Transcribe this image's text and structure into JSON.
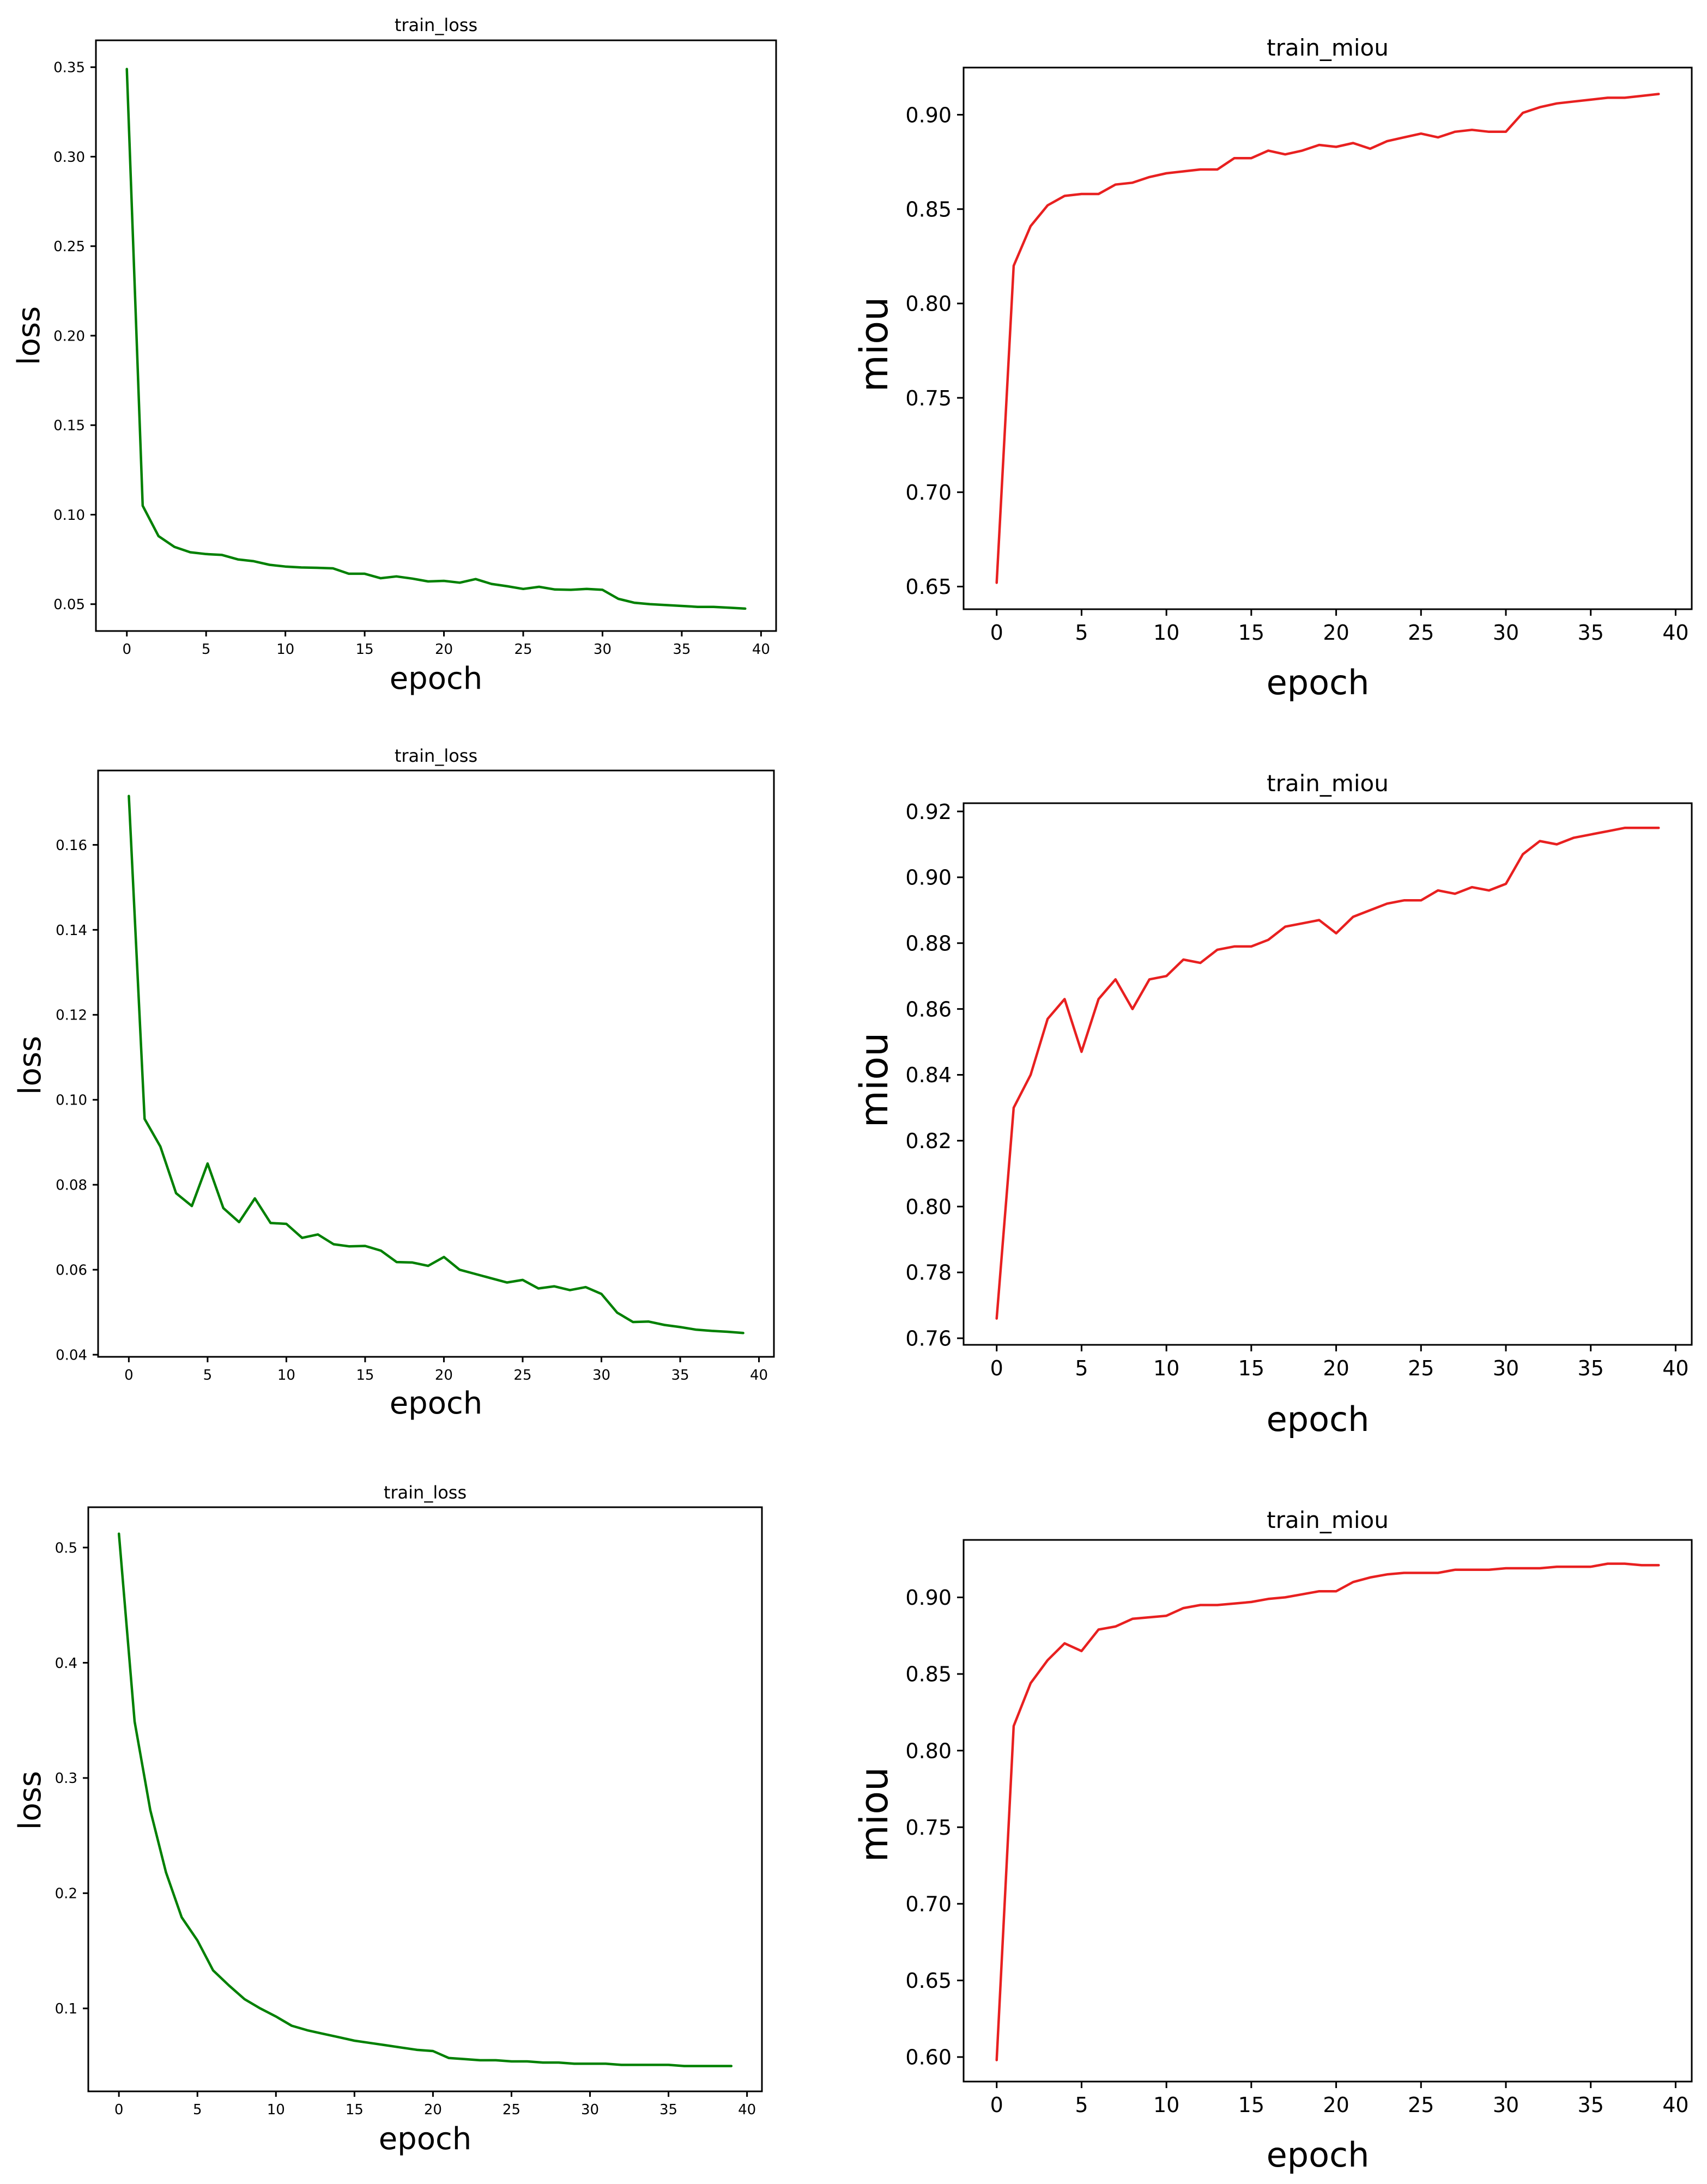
{
  "colors": {
    "loss_line": "#008000",
    "miou_line": "#e82020",
    "axis": "#000000",
    "background": "#ffffff"
  },
  "chart_data": [
    {
      "id": "loss-1",
      "type": "line",
      "title": "train_loss",
      "xlabel": "epoch",
      "ylabel": "loss",
      "xlim": [
        -1.95,
        40.95
      ],
      "ylim": [
        0.035,
        0.365
      ],
      "xticks": [
        0,
        5,
        10,
        15,
        20,
        25,
        30,
        35,
        40
      ],
      "xtick_labels": [
        "0",
        "5",
        "10",
        "15",
        "20",
        "25",
        "30",
        "35",
        "40"
      ],
      "yticks": [
        0.05,
        0.1,
        0.15,
        0.2,
        0.25,
        0.3,
        0.35
      ],
      "ytick_labels": [
        "0.05",
        "0.10",
        "0.15",
        "0.20",
        "0.25",
        "0.30",
        "0.35"
      ],
      "series": [
        {
          "name": "train_loss",
          "color": "#008000",
          "x": [
            0,
            1,
            2,
            3,
            4,
            5,
            6,
            7,
            8,
            9,
            10,
            11,
            12,
            13,
            14,
            15,
            16,
            17,
            18,
            19,
            20,
            21,
            22,
            23,
            24,
            25,
            26,
            27,
            28,
            29,
            30,
            31,
            32,
            33,
            34,
            35,
            36,
            37,
            38,
            39
          ],
          "values": [
            0.349,
            0.105,
            0.088,
            0.082,
            0.079,
            0.078,
            0.0775,
            0.075,
            0.074,
            0.072,
            0.071,
            0.0705,
            0.0703,
            0.07,
            0.067,
            0.067,
            0.0645,
            0.0655,
            0.0643,
            0.0627,
            0.063,
            0.062,
            0.064,
            0.0613,
            0.06,
            0.0585,
            0.0597,
            0.0582,
            0.058,
            0.0585,
            0.058,
            0.053,
            0.0508,
            0.05,
            0.0495,
            0.049,
            0.0485,
            0.0485,
            0.048,
            0.0475
          ]
        }
      ]
    },
    {
      "id": "miou-1",
      "type": "line",
      "title": "train_miou",
      "xlabel": "epoch",
      "ylabel": "miou",
      "xlim": [
        -1.95,
        40.95
      ],
      "ylim": [
        0.638,
        0.925
      ],
      "xticks": [
        0,
        5,
        10,
        15,
        20,
        25,
        30,
        35,
        40
      ],
      "xtick_labels": [
        "0",
        "5",
        "10",
        "15",
        "20",
        "25",
        "30",
        "35",
        "40"
      ],
      "yticks": [
        0.65,
        0.7,
        0.75,
        0.8,
        0.85,
        0.9
      ],
      "ytick_labels": [
        "0.65",
        "0.70",
        "0.75",
        "0.80",
        "0.85",
        "0.90"
      ],
      "series": [
        {
          "name": "train_miou",
          "color": "#e82020",
          "x": [
            0,
            1,
            2,
            3,
            4,
            5,
            6,
            7,
            8,
            9,
            10,
            11,
            12,
            13,
            14,
            15,
            16,
            17,
            18,
            19,
            20,
            21,
            22,
            23,
            24,
            25,
            26,
            27,
            28,
            29,
            30,
            31,
            32,
            33,
            34,
            35,
            36,
            37,
            38,
            39
          ],
          "values": [
            0.652,
            0.82,
            0.841,
            0.852,
            0.857,
            0.858,
            0.858,
            0.863,
            0.864,
            0.867,
            0.869,
            0.87,
            0.871,
            0.871,
            0.877,
            0.877,
            0.881,
            0.879,
            0.881,
            0.884,
            0.883,
            0.885,
            0.882,
            0.886,
            0.888,
            0.89,
            0.888,
            0.891,
            0.892,
            0.891,
            0.891,
            0.901,
            0.904,
            0.906,
            0.907,
            0.908,
            0.909,
            0.909,
            0.91,
            0.911
          ]
        }
      ]
    },
    {
      "id": "loss-2",
      "type": "line",
      "title": "train_loss",
      "xlabel": "epoch",
      "ylabel": "loss",
      "xlim": [
        -1.95,
        40.95
      ],
      "ylim": [
        0.0395,
        0.1775
      ],
      "xticks": [
        0,
        5,
        10,
        15,
        20,
        25,
        30,
        35,
        40
      ],
      "xtick_labels": [
        "0",
        "5",
        "10",
        "15",
        "20",
        "25",
        "30",
        "35",
        "40"
      ],
      "yticks": [
        0.04,
        0.06,
        0.08,
        0.1,
        0.12,
        0.14,
        0.16
      ],
      "ytick_labels": [
        "0.04",
        "0.06",
        "0.08",
        "0.10",
        "0.12",
        "0.14",
        "0.16"
      ],
      "series": [
        {
          "name": "train_loss",
          "color": "#008000",
          "x": [
            0,
            1,
            2,
            3,
            4,
            5,
            6,
            7,
            8,
            9,
            10,
            11,
            12,
            13,
            14,
            15,
            16,
            17,
            18,
            19,
            20,
            21,
            22,
            23,
            24,
            25,
            26,
            27,
            28,
            29,
            30,
            31,
            32,
            33,
            34,
            35,
            36,
            37,
            38,
            39
          ],
          "values": [
            0.1715,
            0.0955,
            0.089,
            0.078,
            0.075,
            0.085,
            0.0745,
            0.0712,
            0.0768,
            0.071,
            0.0708,
            0.0675,
            0.0683,
            0.066,
            0.0655,
            0.0656,
            0.0645,
            0.0618,
            0.0617,
            0.0609,
            0.063,
            0.06,
            0.059,
            0.058,
            0.057,
            0.0576,
            0.0556,
            0.0561,
            0.0552,
            0.0559,
            0.0543,
            0.0499,
            0.0477,
            0.0478,
            0.047,
            0.0465,
            0.0459,
            0.0456,
            0.0454,
            0.0451
          ]
        }
      ]
    },
    {
      "id": "miou-2",
      "type": "line",
      "title": "train_miou",
      "xlabel": "epoch",
      "ylabel": "miou",
      "xlim": [
        -1.95,
        40.95
      ],
      "ylim": [
        0.758,
        0.9225
      ],
      "xticks": [
        0,
        5,
        10,
        15,
        20,
        25,
        30,
        35,
        40
      ],
      "xtick_labels": [
        "0",
        "5",
        "10",
        "15",
        "20",
        "25",
        "30",
        "35",
        "40"
      ],
      "yticks": [
        0.76,
        0.78,
        0.8,
        0.82,
        0.84,
        0.86,
        0.88,
        0.9,
        0.92
      ],
      "ytick_labels": [
        "0.76",
        "0.78",
        "0.80",
        "0.82",
        "0.84",
        "0.86",
        "0.88",
        "0.90",
        "0.92"
      ],
      "series": [
        {
          "name": "train_miou",
          "color": "#e82020",
          "x": [
            0,
            1,
            2,
            3,
            4,
            5,
            6,
            7,
            8,
            9,
            10,
            11,
            12,
            13,
            14,
            15,
            16,
            17,
            18,
            19,
            20,
            21,
            22,
            23,
            24,
            25,
            26,
            27,
            28,
            29,
            30,
            31,
            32,
            33,
            34,
            35,
            36,
            37,
            38,
            39
          ],
          "values": [
            0.766,
            0.83,
            0.84,
            0.857,
            0.863,
            0.847,
            0.863,
            0.869,
            0.86,
            0.869,
            0.87,
            0.875,
            0.874,
            0.878,
            0.879,
            0.879,
            0.881,
            0.885,
            0.886,
            0.887,
            0.883,
            0.888,
            0.89,
            0.892,
            0.893,
            0.893,
            0.896,
            0.895,
            0.897,
            0.896,
            0.898,
            0.907,
            0.911,
            0.91,
            0.912,
            0.913,
            0.914,
            0.915,
            0.915,
            0.915
          ]
        }
      ]
    },
    {
      "id": "loss-3",
      "type": "line",
      "title": "train_loss",
      "xlabel": "epoch",
      "ylabel": "loss",
      "xlim": [
        -1.95,
        40.95
      ],
      "ylim": [
        0.028,
        0.535
      ],
      "xticks": [
        0,
        5,
        10,
        15,
        20,
        25,
        30,
        35,
        40
      ],
      "xtick_labels": [
        "0",
        "5",
        "10",
        "15",
        "20",
        "25",
        "30",
        "35",
        "40"
      ],
      "yticks": [
        0.1,
        0.2,
        0.3,
        0.4,
        0.5
      ],
      "ytick_labels": [
        "0.1",
        "0.2",
        "0.3",
        "0.4",
        "0.5"
      ],
      "series": [
        {
          "name": "train_loss",
          "color": "#008000",
          "x": [
            0,
            1,
            2,
            3,
            4,
            5,
            6,
            7,
            8,
            9,
            10,
            11,
            12,
            13,
            14,
            15,
            16,
            17,
            18,
            19,
            20,
            21,
            22,
            23,
            24,
            25,
            26,
            27,
            28,
            29,
            30,
            31,
            32,
            33,
            34,
            35,
            36,
            37,
            38,
            39
          ],
          "values": [
            0.512,
            0.349,
            0.272,
            0.218,
            0.179,
            0.159,
            0.133,
            0.12,
            0.108,
            0.1,
            0.093,
            0.085,
            0.081,
            0.078,
            0.075,
            0.072,
            0.07,
            0.068,
            0.066,
            0.064,
            0.063,
            0.057,
            0.056,
            0.055,
            0.055,
            0.054,
            0.054,
            0.053,
            0.053,
            0.052,
            0.052,
            0.052,
            0.051,
            0.051,
            0.051,
            0.051,
            0.05,
            0.05,
            0.05,
            0.05
          ]
        }
      ]
    },
    {
      "id": "miou-3",
      "type": "line",
      "title": "train_miou",
      "xlabel": "epoch",
      "ylabel": "miou",
      "xlim": [
        -1.95,
        40.95
      ],
      "ylim": [
        0.584,
        0.9375
      ],
      "xticks": [
        0,
        5,
        10,
        15,
        20,
        25,
        30,
        35,
        40
      ],
      "xtick_labels": [
        "0",
        "5",
        "10",
        "15",
        "20",
        "25",
        "30",
        "35",
        "40"
      ],
      "yticks": [
        0.6,
        0.65,
        0.7,
        0.75,
        0.8,
        0.85,
        0.9
      ],
      "ytick_labels": [
        "0.60",
        "0.65",
        "0.70",
        "0.75",
        "0.80",
        "0.85",
        "0.90"
      ],
      "series": [
        {
          "name": "train_miou",
          "color": "#e82020",
          "x": [
            0,
            1,
            2,
            3,
            4,
            5,
            6,
            7,
            8,
            9,
            10,
            11,
            12,
            13,
            14,
            15,
            16,
            17,
            18,
            19,
            20,
            21,
            22,
            23,
            24,
            25,
            26,
            27,
            28,
            29,
            30,
            31,
            32,
            33,
            34,
            35,
            36,
            37,
            38,
            39
          ],
          "values": [
            0.598,
            0.816,
            0.844,
            0.859,
            0.87,
            0.865,
            0.879,
            0.881,
            0.886,
            0.887,
            0.888,
            0.893,
            0.895,
            0.895,
            0.896,
            0.897,
            0.899,
            0.9,
            0.902,
            0.904,
            0.904,
            0.91,
            0.913,
            0.915,
            0.916,
            0.916,
            0.916,
            0.918,
            0.918,
            0.918,
            0.919,
            0.919,
            0.919,
            0.92,
            0.92,
            0.92,
            0.922,
            0.922,
            0.921,
            0.921
          ]
        }
      ]
    }
  ]
}
